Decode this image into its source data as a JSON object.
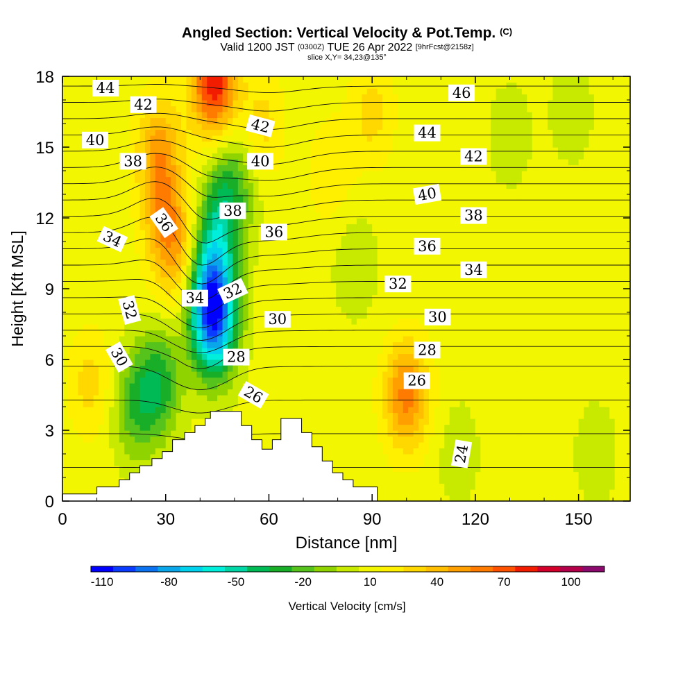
{
  "title": {
    "main": "Angled Section: Vertical Velocity & Pot.Temp.",
    "copyright": "(C)",
    "valid_prefix": "Valid 1200 JST",
    "valid_utc": "(0300Z)",
    "valid_date": "TUE 26 Apr 2022",
    "forecast": "[9hrFcst@2158z]",
    "slice": "slice X,Y= 34,23@135°"
  },
  "colorbar": {
    "title": "Vertical Velocity [cm/s]",
    "tick_labels": [
      "-110",
      "-80",
      "-50",
      "-20",
      "10",
      "40",
      "70",
      "100"
    ],
    "tick_values": [
      -110,
      -80,
      -50,
      -20,
      10,
      40,
      70,
      100
    ],
    "min": -115,
    "max": 115,
    "step": 10,
    "colors": [
      "#0000ff",
      "#0a3cff",
      "#0b72f0",
      "#09a7ea",
      "#00d2ee",
      "#00eedc",
      "#00d6a6",
      "#00bb55",
      "#18ae28",
      "#55c31c",
      "#8fd400",
      "#c8ea00",
      "#f2f600",
      "#fff000",
      "#ffd800",
      "#ffbe00",
      "#ffa000",
      "#ff7b00",
      "#ff5200",
      "#f21d00",
      "#d4002c",
      "#b4004a",
      "#8c0a6e"
    ]
  },
  "chart_data": {
    "type": "heatmap",
    "title": "Angled Section: Vertical Velocity & Pot.Temp.",
    "xlabel": "Distance [nm]",
    "ylabel": "Height [Kft MSL]",
    "xlim": [
      0,
      165
    ],
    "ylim": [
      0,
      18
    ],
    "x_ticks": [
      0,
      30,
      60,
      90,
      120,
      150
    ],
    "y_ticks": [
      0,
      3,
      6,
      9,
      12,
      15,
      18
    ],
    "x_tick_labels": [
      "0",
      "30",
      "60",
      "90",
      "120",
      "150"
    ],
    "y_tick_labels": [
      "0",
      "3",
      "6",
      "9",
      "12",
      "15",
      "18"
    ],
    "field": "Vertical Velocity [cm/s]",
    "velocity_features": [
      {
        "x": 44,
        "y": 17.8,
        "value": 75
      },
      {
        "x": 28,
        "y": 14.8,
        "value": 40
      },
      {
        "x": 30,
        "y": 11.8,
        "value": 35
      },
      {
        "x": 34,
        "y": 10.2,
        "value": 25
      },
      {
        "x": 44,
        "y": 7.5,
        "value": -90
      },
      {
        "x": 43,
        "y": 9.4,
        "value": -60
      },
      {
        "x": 28,
        "y": 5.0,
        "value": -40
      },
      {
        "x": 21,
        "y": 4.0,
        "value": -30
      },
      {
        "x": 46,
        "y": 12.0,
        "value": -35
      },
      {
        "x": 50,
        "y": 13.6,
        "value": -25
      },
      {
        "x": 100,
        "y": 4.5,
        "value": 50
      },
      {
        "x": 58,
        "y": 16.0,
        "value": 20
      },
      {
        "x": 78,
        "y": 14.0,
        "value": 15
      },
      {
        "x": 90,
        "y": 16.5,
        "value": 20
      },
      {
        "x": 8,
        "y": 5.0,
        "value": 20
      },
      {
        "x": 148,
        "y": 16.5,
        "value": -10
      },
      {
        "x": 130,
        "y": 15.5,
        "value": -10
      },
      {
        "x": 85,
        "y": 10.0,
        "value": -12
      },
      {
        "x": 115,
        "y": 2.0,
        "value": -10
      },
      {
        "x": 155,
        "y": 2.0,
        "value": -10
      },
      {
        "x": 155,
        "y": 10.0,
        "value": 5
      }
    ],
    "isentropes": {
      "values": [
        24,
        25,
        26,
        27,
        28,
        29,
        30,
        31,
        32,
        33,
        34,
        35,
        36,
        37,
        38,
        39,
        40,
        41,
        42,
        43,
        44,
        45,
        46
      ]
    },
    "isentrope_labels": [
      {
        "text": "44",
        "x": 12.5,
        "y": 17.5,
        "rotation": 0
      },
      {
        "text": "42",
        "x": 23.5,
        "y": 16.8,
        "rotation": 0
      },
      {
        "text": "40",
        "x": 9.5,
        "y": 15.3,
        "rotation": 0
      },
      {
        "text": "38",
        "x": 20.5,
        "y": 14.4,
        "rotation": 0
      },
      {
        "text": "36",
        "x": 29.5,
        "y": 11.8,
        "rotation": 55
      },
      {
        "text": "34",
        "x": 14.5,
        "y": 11.1,
        "rotation": 25
      },
      {
        "text": "32",
        "x": 19.5,
        "y": 8.1,
        "rotation": 75
      },
      {
        "text": "30",
        "x": 16.5,
        "y": 6.1,
        "rotation": 60
      },
      {
        "text": "34",
        "x": 38.5,
        "y": 8.6,
        "rotation": 0
      },
      {
        "text": "32",
        "x": 49.5,
        "y": 8.9,
        "rotation": -25
      },
      {
        "text": "38",
        "x": 49.5,
        "y": 12.3,
        "rotation": 0
      },
      {
        "text": "36",
        "x": 61.5,
        "y": 11.4,
        "rotation": 0
      },
      {
        "text": "30",
        "x": 62.5,
        "y": 7.7,
        "rotation": 0
      },
      {
        "text": "28",
        "x": 50.5,
        "y": 6.1,
        "rotation": 0
      },
      {
        "text": "26",
        "x": 55.5,
        "y": 4.5,
        "rotation": 30
      },
      {
        "text": "42",
        "x": 57.5,
        "y": 15.9,
        "rotation": 15
      },
      {
        "text": "40",
        "x": 57.5,
        "y": 14.4,
        "rotation": 0
      },
      {
        "text": "46",
        "x": 116.0,
        "y": 17.3,
        "rotation": 0
      },
      {
        "text": "44",
        "x": 106.0,
        "y": 15.6,
        "rotation": 0
      },
      {
        "text": "42",
        "x": 119.5,
        "y": 14.6,
        "rotation": 0
      },
      {
        "text": "40",
        "x": 106.0,
        "y": 13.0,
        "rotation": -10
      },
      {
        "text": "38",
        "x": 119.5,
        "y": 12.1,
        "rotation": 0
      },
      {
        "text": "36",
        "x": 106.0,
        "y": 10.8,
        "rotation": 0
      },
      {
        "text": "34",
        "x": 119.5,
        "y": 9.8,
        "rotation": 0
      },
      {
        "text": "32",
        "x": 97.5,
        "y": 9.2,
        "rotation": 0
      },
      {
        "text": "30",
        "x": 109.0,
        "y": 7.8,
        "rotation": 0
      },
      {
        "text": "28",
        "x": 106.0,
        "y": 6.4,
        "rotation": 0
      },
      {
        "text": "26",
        "x": 103.0,
        "y": 5.1,
        "rotation": 0
      },
      {
        "text": "24",
        "x": 116.0,
        "y": 2.0,
        "rotation": -80
      }
    ],
    "terrain": [
      [
        0,
        0.3
      ],
      [
        10,
        0.3
      ],
      [
        10,
        0.6
      ],
      [
        16.5,
        0.6
      ],
      [
        16.5,
        0.9
      ],
      [
        19.5,
        0.9
      ],
      [
        19.5,
        1.2
      ],
      [
        22.5,
        1.2
      ],
      [
        22.5,
        1.5
      ],
      [
        26,
        1.5
      ],
      [
        26,
        1.8
      ],
      [
        29,
        1.8
      ],
      [
        29,
        2.1
      ],
      [
        32,
        2.1
      ],
      [
        32,
        2.6
      ],
      [
        35.5,
        2.6
      ],
      [
        35.5,
        2.9
      ],
      [
        38.5,
        2.9
      ],
      [
        38.5,
        3.2
      ],
      [
        41.5,
        3.2
      ],
      [
        41.5,
        3.5
      ],
      [
        43,
        3.5
      ],
      [
        43,
        3.8
      ],
      [
        52,
        3.8
      ],
      [
        52,
        3.2
      ],
      [
        55,
        3.2
      ],
      [
        55,
        2.6
      ],
      [
        58,
        2.6
      ],
      [
        58,
        2.2
      ],
      [
        61,
        2.2
      ],
      [
        61,
        2.6
      ],
      [
        63.5,
        2.6
      ],
      [
        63.5,
        3.5
      ],
      [
        69.5,
        3.5
      ],
      [
        69.5,
        2.9
      ],
      [
        72.5,
        2.9
      ],
      [
        72.5,
        2.3
      ],
      [
        75.5,
        2.3
      ],
      [
        75.5,
        1.7
      ],
      [
        78.5,
        1.7
      ],
      [
        78.5,
        1.2
      ],
      [
        81.5,
        1.2
      ],
      [
        81.5,
        0.9
      ],
      [
        84.5,
        0.9
      ],
      [
        84.5,
        0.6
      ],
      [
        91.5,
        0.6
      ],
      [
        91.5,
        0
      ],
      [
        0,
        0
      ]
    ]
  }
}
